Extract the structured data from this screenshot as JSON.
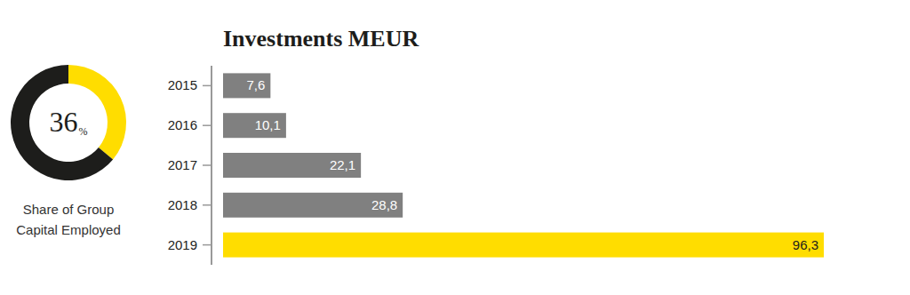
{
  "chart_data": [
    {
      "type": "pie",
      "title": "Share of Group Capital Employed",
      "values": [
        36,
        64
      ],
      "value_labels": [
        "36%",
        null
      ],
      "colors": [
        "#ffdd00",
        "#1d1d1b"
      ],
      "data_labels": true
    },
    {
      "type": "bar",
      "orientation": "horizontal",
      "title": "Investments MEUR",
      "categories": [
        "2015",
        "2016",
        "2017",
        "2018",
        "2019"
      ],
      "values": [
        7.6,
        10.1,
        22.1,
        28.8,
        96.3
      ],
      "value_labels": [
        "7,6",
        "10,1",
        "22,1",
        "28,8",
        "96,3"
      ],
      "colors": [
        "#808080",
        "#808080",
        "#808080",
        "#808080",
        "#ffdd00"
      ],
      "xlim": [
        0,
        96.3
      ],
      "data_labels": true,
      "tick_labels": "y"
    }
  ]
}
